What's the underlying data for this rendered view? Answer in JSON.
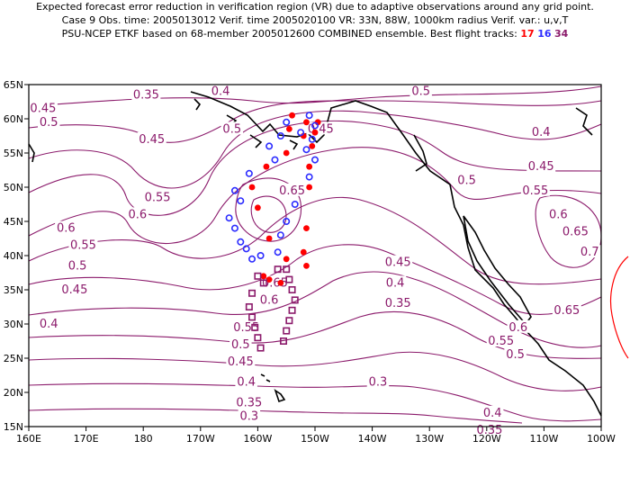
{
  "header": {
    "line1": "Expected forecast error reduction in verification region (VR) due to adaptive observations around any grid point.",
    "line2": "Case 9   Obs. time: 2005013012   Verif. time 2005020100   VR: 33N, 88W, 1000km radius   Verif. var.: u,v,T",
    "line3_prefix": "PSU-NCEP ETKF based on 68-member 2005012600 COMBINED ensemble.   Best flight tracks:",
    "track17": "17",
    "track16": "16",
    "track34": "34"
  },
  "chart_data": {
    "type": "contour-map",
    "x_axis": {
      "range": [
        160,
        260
      ],
      "ticks": [
        "160E",
        "170E",
        "180",
        "170W",
        "160W",
        "150W",
        "140W",
        "130W",
        "120W",
        "110W",
        "100W"
      ]
    },
    "y_axis": {
      "range": [
        15,
        65
      ],
      "ticks": [
        "15N",
        "20N",
        "25N",
        "30N",
        "35N",
        "40N",
        "45N",
        "50N",
        "55N",
        "60N",
        "65N"
      ]
    },
    "contour_labels": [
      {
        "v": "0.35",
        "lon": 180.5,
        "lat": 63.5
      },
      {
        "v": "0.4",
        "lon": 193.5,
        "lat": 64.0
      },
      {
        "v": "0.5",
        "lon": 228.5,
        "lat": 64.0
      },
      {
        "v": "0.45",
        "lon": 162.5,
        "lat": 61.5
      },
      {
        "v": "0.5",
        "lon": 163.5,
        "lat": 59.5
      },
      {
        "v": "0.45",
        "lon": 181.5,
        "lat": 57.0
      },
      {
        "v": "0.5",
        "lon": 195.5,
        "lat": 58.5
      },
      {
        "v": "0.45",
        "lon": 211.0,
        "lat": 58.5
      },
      {
        "v": "0.4",
        "lon": 249.5,
        "lat": 58.0
      },
      {
        "v": "0.45",
        "lon": 249.5,
        "lat": 53.0
      },
      {
        "v": "0.5",
        "lon": 236.5,
        "lat": 51.0
      },
      {
        "v": "0.55",
        "lon": 182.5,
        "lat": 48.5
      },
      {
        "v": "0.65",
        "lon": 206.0,
        "lat": 49.5
      },
      {
        "v": "0.55",
        "lon": 248.5,
        "lat": 49.5
      },
      {
        "v": "0.6",
        "lon": 179.0,
        "lat": 46.0
      },
      {
        "v": "0.6",
        "lon": 166.5,
        "lat": 44.0
      },
      {
        "v": "0.6",
        "lon": 252.5,
        "lat": 46.0
      },
      {
        "v": "0.65",
        "lon": 255.5,
        "lat": 43.5
      },
      {
        "v": "0.55",
        "lon": 169.5,
        "lat": 41.5
      },
      {
        "v": "0.7",
        "lon": 258.0,
        "lat": 40.5
      },
      {
        "v": "0.5",
        "lon": 168.5,
        "lat": 38.5
      },
      {
        "v": "0.45",
        "lon": 224.5,
        "lat": 39.0
      },
      {
        "v": "0.45",
        "lon": 168.0,
        "lat": 35.0
      },
      {
        "v": "0.4",
        "lon": 224.0,
        "lat": 36.0
      },
      {
        "v": "0.65",
        "lon": 203.0,
        "lat": 36.0
      },
      {
        "v": "0.6",
        "lon": 202.0,
        "lat": 33.5
      },
      {
        "v": "0.35",
        "lon": 224.5,
        "lat": 33.0
      },
      {
        "v": "0.65",
        "lon": 254.0,
        "lat": 32.0
      },
      {
        "v": "0.4",
        "lon": 163.5,
        "lat": 30.0
      },
      {
        "v": "0.55",
        "lon": 198.0,
        "lat": 29.5
      },
      {
        "v": "0.6",
        "lon": 245.5,
        "lat": 29.5
      },
      {
        "v": "0.55",
        "lon": 242.5,
        "lat": 27.5
      },
      {
        "v": "0.5",
        "lon": 197.0,
        "lat": 27.0
      },
      {
        "v": "0.5",
        "lon": 245.0,
        "lat": 25.5
      },
      {
        "v": "0.45",
        "lon": 197.0,
        "lat": 24.5
      },
      {
        "v": "0.4",
        "lon": 198.0,
        "lat": 21.5
      },
      {
        "v": "0.3",
        "lon": 221.0,
        "lat": 21.5
      },
      {
        "v": "0.35",
        "lon": 198.5,
        "lat": 18.5
      },
      {
        "v": "0.4",
        "lon": 241.0,
        "lat": 17.0
      },
      {
        "v": "0.3",
        "lon": 198.5,
        "lat": 16.5
      },
      {
        "v": "0.35",
        "lon": 240.5,
        "lat": 14.5
      }
    ],
    "flight_tracks": [
      {
        "name": "17",
        "color": "#ff0000",
        "marker": "filled-circle",
        "points": [
          [
            206,
            60.5
          ],
          [
            208.5,
            59.5
          ],
          [
            205.5,
            58.5
          ],
          [
            210.5,
            59.5
          ],
          [
            210,
            58
          ],
          [
            208,
            57.5
          ],
          [
            209.5,
            56
          ],
          [
            205,
            55
          ],
          [
            209,
            53
          ],
          [
            201.5,
            53
          ],
          [
            199,
            50
          ],
          [
            209,
            50
          ],
          [
            200,
            47
          ],
          [
            208.5,
            44
          ],
          [
            202,
            42.5
          ],
          [
            208,
            40.5
          ],
          [
            205,
            39.5
          ],
          [
            208.5,
            38.5
          ],
          [
            201,
            37
          ],
          [
            202,
            36.5
          ],
          [
            204,
            36
          ]
        ]
      },
      {
        "name": "16",
        "color": "#2c2cff",
        "marker": "open-circle",
        "points": [
          [
            209,
            60.5
          ],
          [
            205,
            59.5
          ],
          [
            210,
            59
          ],
          [
            207.5,
            58
          ],
          [
            204,
            57.5
          ],
          [
            209.5,
            57
          ],
          [
            202,
            56
          ],
          [
            208.5,
            55.5
          ],
          [
            203,
            54
          ],
          [
            210,
            54
          ],
          [
            198.5,
            52
          ],
          [
            209,
            51.5
          ],
          [
            196,
            49.5
          ],
          [
            197,
            48
          ],
          [
            206.5,
            47.5
          ],
          [
            195,
            45.5
          ],
          [
            205,
            45
          ],
          [
            196,
            44
          ],
          [
            204,
            43
          ],
          [
            197,
            42
          ],
          [
            198,
            41
          ],
          [
            203.5,
            40.5
          ],
          [
            200.5,
            40
          ],
          [
            199,
            39.5
          ]
        ]
      },
      {
        "name": "34",
        "color": "#8b1a6b",
        "marker": "open-square",
        "points": [
          [
            203.5,
            38
          ],
          [
            205,
            38
          ],
          [
            200,
            37
          ],
          [
            205.5,
            36.5
          ],
          [
            201,
            36
          ],
          [
            206,
            35
          ],
          [
            199,
            34.5
          ],
          [
            206.5,
            33.5
          ],
          [
            198.5,
            32.5
          ],
          [
            206,
            32
          ],
          [
            199,
            31
          ],
          [
            205.5,
            30.5
          ],
          [
            199.5,
            29.5
          ],
          [
            205,
            29
          ],
          [
            200,
            28
          ],
          [
            204.5,
            27.5
          ],
          [
            200.5,
            26.5
          ]
        ]
      }
    ],
    "colors": {
      "contour": "#8b1a6b",
      "coast": "#000000",
      "vr_circle": "#ff0000",
      "frame": "#000000"
    }
  }
}
